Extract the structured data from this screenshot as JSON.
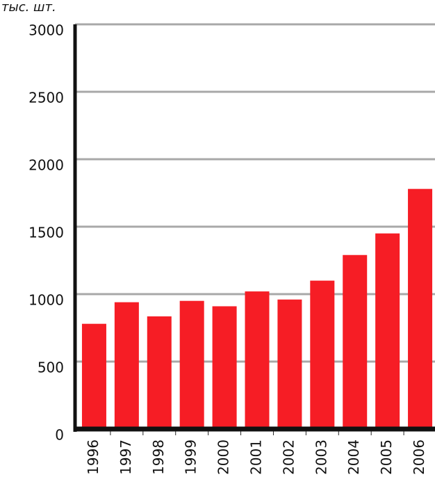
{
  "chart_data": {
    "type": "bar",
    "y_unit": "тыс. шт.",
    "categories": [
      "1996",
      "1997",
      "1998",
      "1999",
      "2000",
      "2001",
      "2002",
      "2003",
      "2004",
      "2005",
      "2006"
    ],
    "values": [
      780,
      940,
      835,
      950,
      910,
      1020,
      960,
      1100,
      1290,
      1450,
      1780
    ],
    "color": "#f61d25",
    "ylim": [
      0,
      3000
    ],
    "yticks": [
      0,
      500,
      1000,
      1500,
      2000,
      2500,
      3000
    ],
    "grid": true
  }
}
